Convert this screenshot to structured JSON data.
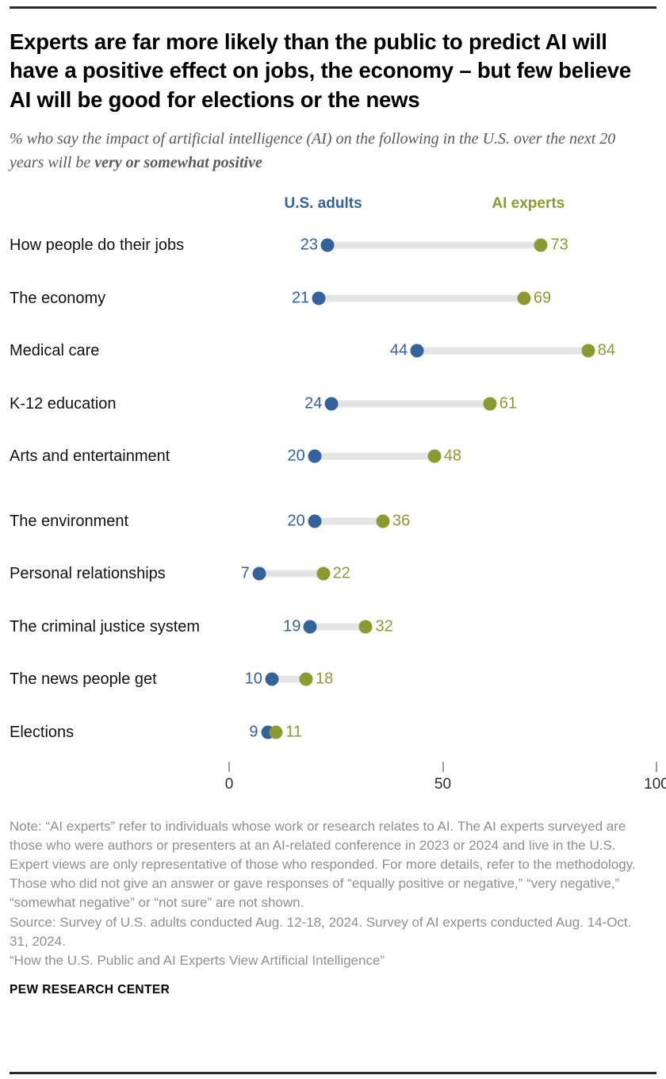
{
  "header": {
    "title": "Experts are far more likely than the public to predict AI will have a positive effect on jobs, the economy – but few believe AI will be good for elections or the news",
    "subtitle_plain": "% who say the impact of artificial intelligence (AI) on the following in the U.S. over the next 20 years will be ",
    "subtitle_bold": "very or somewhat positive"
  },
  "chart_data": {
    "type": "dumbbell",
    "title": "Experts are far more likely than the public to predict AI will have a positive effect on jobs, the economy – but few believe AI will be good for elections or the news",
    "subtitle": "% who say the impact of artificial intelligence (AI) on the following in the U.S. over the next 20 years will be very or somewhat positive",
    "categories": [
      "How people do their jobs",
      "The economy",
      "Medical care",
      "K-12 education",
      "Arts and entertainment",
      "The environment",
      "Personal relationships",
      "The criminal justice system",
      "The news people get",
      "Elections"
    ],
    "series": [
      {
        "name": "U.S. adults",
        "color": "#34639C",
        "values": [
          23,
          21,
          44,
          24,
          20,
          20,
          7,
          19,
          10,
          9
        ]
      },
      {
        "name": "AI experts",
        "color": "#8C9B31",
        "values": [
          73,
          69,
          84,
          61,
          48,
          36,
          22,
          32,
          18,
          11
        ]
      }
    ],
    "xlim": [
      0,
      100
    ],
    "x_ticks": [
      0,
      50,
      100
    ],
    "legend_position": "top",
    "grid": "off",
    "track_color": "#E4E4E4",
    "layout": {
      "extra_gap_before": "The environment"
    }
  },
  "footer": {
    "note": "Note: “AI experts” refer to individuals whose work or research relates to AI. The AI experts surveyed are those who were authors or presenters at an AI-related conference in 2023 or 2024 and live in the U.S. Expert views are only representative of those who responded. For more details, refer to the methodology. Those who did not give an answer or gave responses of “equally positive or negative,” “very negative,” “somewhat negative” or “not sure” are not shown.",
    "source": "Source: Survey of U.S. adults conducted Aug. 12-18, 2024. Survey of AI experts conducted Aug. 14-Oct. 31, 2024.",
    "citation": "“How the U.S. Public and AI Experts View Artificial Intelligence”",
    "brand": "PEW RESEARCH CENTER"
  }
}
